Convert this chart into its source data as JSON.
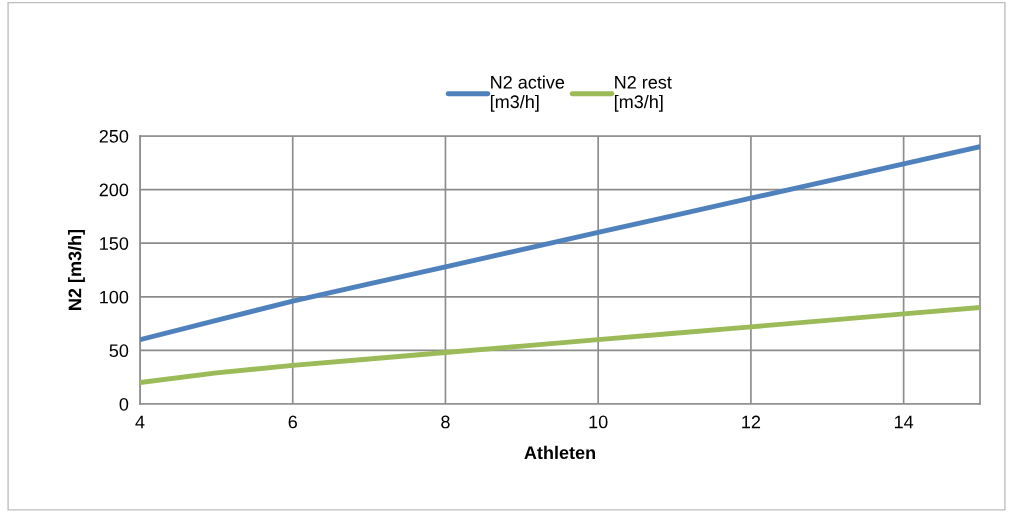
{
  "chart_data": {
    "type": "line",
    "xlabel": "Athleten",
    "ylabel": "N2 [m3/h]",
    "x": [
      4,
      5,
      6,
      7,
      8,
      9,
      10,
      11,
      12,
      13,
      14,
      15
    ],
    "series": [
      {
        "name": "N2 active\n[m3/h]",
        "color": "#4f81bd",
        "values": [
          60,
          78,
          96,
          112,
          128,
          144,
          160,
          176,
          192,
          208,
          224,
          240
        ]
      },
      {
        "name": "N2 rest\n[m3/h]",
        "color": "#9bbb59",
        "values": [
          20,
          29,
          36,
          42,
          48,
          54,
          60,
          66,
          72,
          78,
          84,
          90
        ]
      }
    ],
    "xlim": [
      4,
      15
    ],
    "xticks": [
      4,
      6,
      8,
      10,
      12,
      14
    ],
    "ylim": [
      0,
      250
    ],
    "yticks": [
      0,
      50,
      100,
      150,
      200,
      250
    ],
    "grid": true,
    "legend": "top",
    "marker": "none",
    "line_style": "solid"
  }
}
